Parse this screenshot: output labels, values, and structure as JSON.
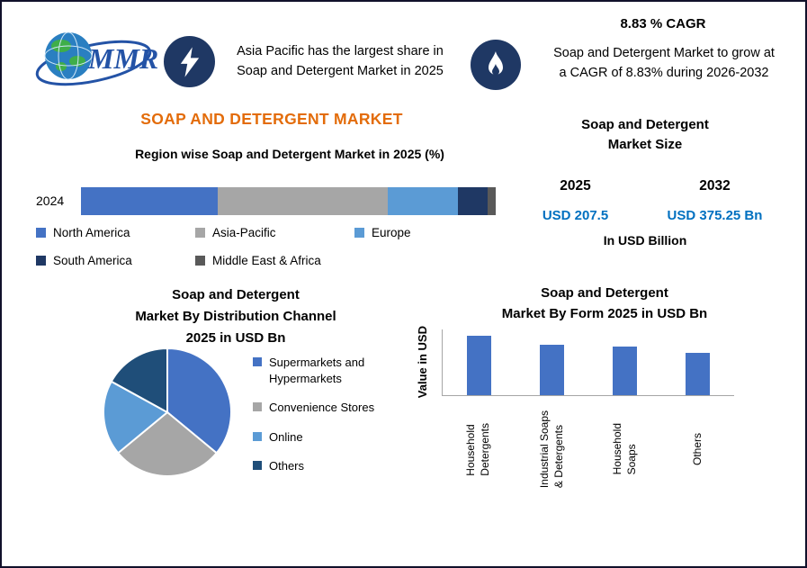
{
  "brand": {
    "logo_text": "MMR"
  },
  "header": {
    "callout_left": "Asia Pacific has the largest share in\nSoap and Detergent Market in 2025",
    "cagr_heading": "8.83 % CAGR",
    "callout_right": "Soap and Detergent Market to grow at\na CAGR of 8.83% during 2026-2032"
  },
  "main": {
    "title": "SOAP AND DETERGENT MARKET"
  },
  "market_size": {
    "title": "Soap and Detergent\nMarket Size",
    "year_left": "2025",
    "year_right": "2032",
    "value_left": "USD 207.5",
    "value_right": "USD 375.25 Bn",
    "unit": "In USD Billion"
  },
  "distribution": {
    "title": "Soap and Detergent\nMarket By Distribution Channel\n2025 in USD Bn"
  },
  "form_chart": {
    "title": "Soap and Detergent\nMarket By Form 2025 in USD Bn",
    "ylabel": "Value in USD"
  },
  "colors": {
    "accent_orange": "#E36C0A",
    "value_blue": "#0070C0",
    "badge_navy": "#1F3864",
    "primary_bar_blue": "#4472C4"
  },
  "chart_data": [
    {
      "id": "region-share",
      "type": "bar",
      "subtype": "horizontal-stacked",
      "title": "Region wise Soap and Detergent Market in 2025 (%)",
      "row_label": "2024",
      "xlim": [
        0,
        100
      ],
      "legend_position": "bottom",
      "series": [
        {
          "name": "North America",
          "value": 33,
          "color": "#4472C4"
        },
        {
          "name": "Asia-Pacific",
          "value": 41,
          "color": "#A6A6A6"
        },
        {
          "name": "Europe",
          "value": 17,
          "color": "#5B9BD5"
        },
        {
          "name": "South America",
          "value": 7,
          "color": "#1F3864"
        },
        {
          "name": "Middle East & Africa",
          "value": 2,
          "color": "#595959"
        }
      ]
    },
    {
      "id": "distribution-channel",
      "type": "pie",
      "title": "Soap and Detergent Market By Distribution Channel 2025 in USD Bn",
      "start_angle_deg": -90,
      "direction": "clockwise",
      "legend_position": "right",
      "slices": [
        {
          "label": "Supermarkets and\nHypermarkets",
          "value": 36,
          "color": "#4472C4"
        },
        {
          "label": "Convenience Stores",
          "value": 28,
          "color": "#A6A6A6"
        },
        {
          "label": "Online",
          "value": 19,
          "color": "#5B9BD5"
        },
        {
          "label": "Others",
          "value": 17,
          "color": "#1F4E79"
        }
      ]
    },
    {
      "id": "market-by-form",
      "type": "bar",
      "title": "Soap and Detergent Market By Form 2025 in USD Bn",
      "ylabel": "Value in USD",
      "categories": [
        "Household\nDetergents",
        "Industrial Soaps\n& Detergents",
        "Household\nSoaps",
        "Others"
      ],
      "values": [
        100,
        85,
        82,
        71
      ],
      "ylim": [
        0,
        110
      ],
      "bar_color": "#4472C4",
      "grid": false
    }
  ]
}
